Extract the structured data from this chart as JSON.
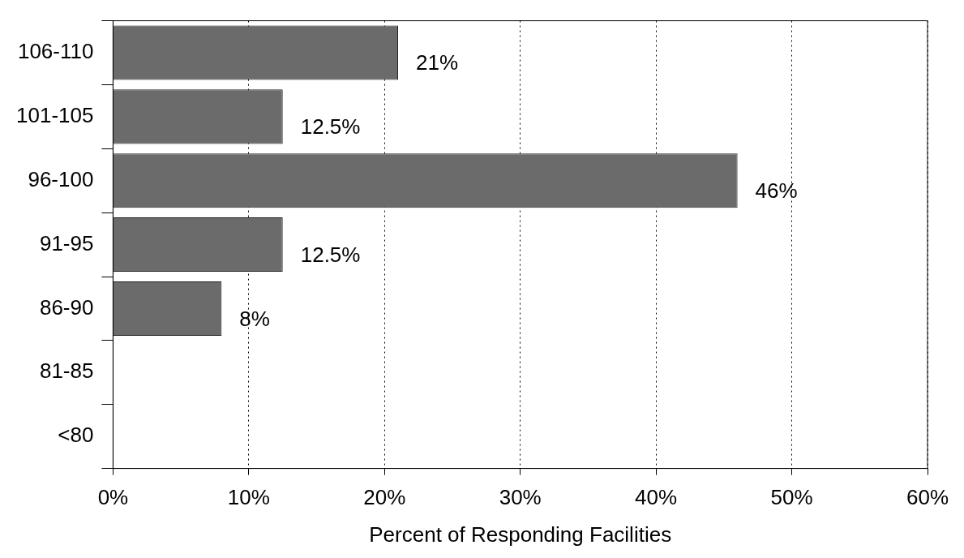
{
  "chart_data": {
    "type": "bar",
    "orientation": "horizontal",
    "xlabel": "Percent of Responding Facilities",
    "categories": [
      "106-110",
      "101-105",
      "96-100",
      "91-95",
      "86-90",
      "81-85",
      "<80"
    ],
    "values": [
      21,
      12.5,
      46,
      12.5,
      8,
      0,
      0
    ],
    "value_labels": [
      "21%",
      "12.5%",
      "46%",
      "12.5%",
      "8%",
      null,
      null
    ],
    "color": "#6b6b6b",
    "xlim": [
      0,
      60
    ],
    "xticks": [
      {
        "value": 0,
        "label": "0%"
      },
      {
        "value": 10,
        "label": "10%"
      },
      {
        "value": 20,
        "label": "20%"
      },
      {
        "value": 30,
        "label": "30%"
      },
      {
        "value": 40,
        "label": "40%"
      },
      {
        "value": 50,
        "label": "50%"
      },
      {
        "value": 60,
        "label": "60%"
      }
    ],
    "grid": "x",
    "legend": false
  }
}
